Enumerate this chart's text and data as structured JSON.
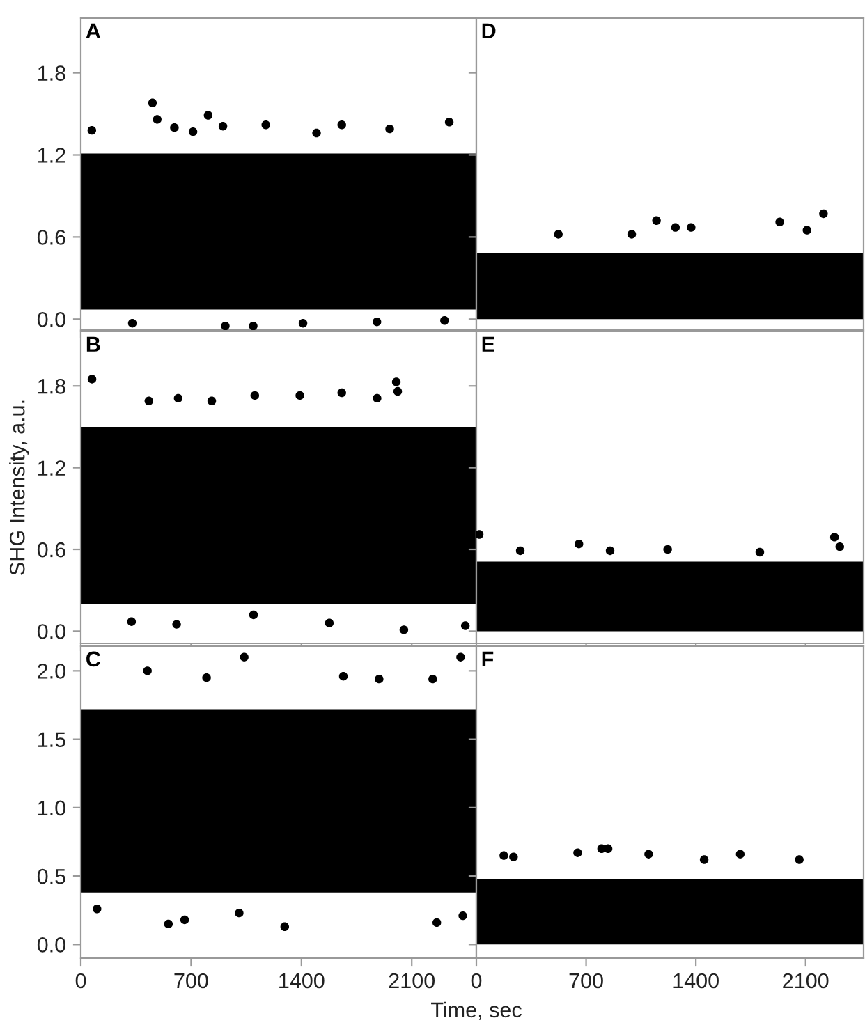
{
  "chart_data": [
    {
      "type": "scatter",
      "title": "A",
      "xlim": [
        0,
        2510
      ],
      "ylim": [
        -0.08,
        2.2
      ],
      "xticks": [
        {
          "value": 0,
          "label": null
        },
        {
          "value": 700,
          "label": null
        },
        {
          "value": 1400,
          "label": null
        },
        {
          "value": 2100,
          "label": null
        }
      ],
      "yticks": [
        {
          "value": 0,
          "label": "0.0"
        },
        0.6,
        1.2,
        1.8
      ],
      "tick_labels": "y",
      "marker": "circle",
      "color": "#000000",
      "bands": [
        {
          "axis": "y",
          "from": 0.07,
          "to": 1.21,
          "color": "#000000"
        }
      ],
      "x": [
        455,
        485,
        808,
        902,
        1174,
        1656,
        1960,
        2338,
        70,
        594,
        712,
        1496,
        917,
        1094,
        1410,
        327,
        1879,
        2308
      ],
      "values": [
        1.58,
        1.46,
        1.49,
        1.41,
        1.42,
        1.42,
        1.39,
        1.44,
        1.38,
        1.4,
        1.37,
        1.36,
        -0.05,
        -0.05,
        -0.03,
        -0.03,
        -0.02,
        -0.01
      ]
    },
    {
      "type": "scatter",
      "title": "D",
      "xlim": [
        0,
        2470
      ],
      "ylim": [
        -0.08,
        2.2
      ],
      "xticks": [
        {
          "value": 0,
          "label": null
        },
        {
          "value": 700,
          "label": null
        },
        {
          "value": 1400,
          "label": null
        },
        {
          "value": 2100,
          "label": null
        }
      ],
      "yticks": [
        {
          "value": 0,
          "label": null
        },
        {
          "value": 0.6,
          "label": null
        },
        {
          "value": 1.2,
          "label": null
        },
        {
          "value": 1.8,
          "label": null
        }
      ],
      "tick_labels": false,
      "marker": "circle",
      "color": "#000000",
      "bands": [
        {
          "axis": "y",
          "from": 0.0,
          "to": 0.48,
          "color": "#000000"
        }
      ],
      "x": [
        1149,
        2214,
        1935,
        1270,
        1370,
        2109,
        523,
        991
      ],
      "values": [
        0.72,
        0.77,
        0.71,
        0.67,
        0.67,
        0.65,
        0.62,
        0.62
      ]
    },
    {
      "type": "scatter",
      "title": "B",
      "ylabel": "SHG Intensity, a.u.",
      "xlim": [
        0,
        2510
      ],
      "ylim": [
        -0.09,
        2.2
      ],
      "xticks": [
        {
          "value": 0,
          "label": null
        },
        {
          "value": 700,
          "label": null
        },
        {
          "value": 1400,
          "label": null
        },
        {
          "value": 2100,
          "label": null
        }
      ],
      "yticks": [
        {
          "value": 0,
          "label": "0.0"
        },
        0.6,
        1.2,
        1.8
      ],
      "tick_labels": "y",
      "marker": "circle",
      "color": "#000000",
      "bands": [
        {
          "axis": "y",
          "from": 0.2,
          "to": 1.5,
          "color": "#000000"
        }
      ],
      "x": [
        71,
        2002,
        2011,
        1104,
        1656,
        1390,
        432,
        618,
        831,
        1880,
        322,
        608,
        2050,
        1577,
        2440,
        1096
      ],
      "values": [
        1.85,
        1.83,
        1.76,
        1.73,
        1.75,
        1.73,
        1.69,
        1.71,
        1.69,
        1.71,
        0.07,
        0.05,
        0.01,
        0.06,
        0.04,
        0.12
      ]
    },
    {
      "type": "scatter",
      "title": "E",
      "xlim": [
        0,
        2470
      ],
      "ylim": [
        -0.09,
        2.2
      ],
      "xticks": [
        {
          "value": 0,
          "label": null
        },
        {
          "value": 700,
          "label": null
        },
        {
          "value": 1400,
          "label": null
        },
        {
          "value": 2100,
          "label": null
        }
      ],
      "yticks": [
        {
          "value": 0,
          "label": null
        },
        {
          "value": 0.6,
          "label": null
        },
        {
          "value": 1.2,
          "label": null
        },
        {
          "value": 1.8,
          "label": null
        }
      ],
      "tick_labels": false,
      "marker": "circle",
      "color": "#000000",
      "bands": [
        {
          "axis": "y",
          "from": 0.0,
          "to": 0.51,
          "color": "#000000"
        }
      ],
      "x": [
        18,
        654,
        2284,
        2318,
        280,
        1220,
        853,
        1808
      ],
      "values": [
        0.71,
        0.64,
        0.69,
        0.62,
        0.59,
        0.6,
        0.59,
        0.58
      ]
    },
    {
      "type": "scatter",
      "title": "C",
      "xlabel": "Time, sec",
      "xlim": [
        0,
        2510
      ],
      "ylim": [
        -0.1,
        2.18
      ],
      "xticks": [
        0,
        700,
        1400,
        2100
      ],
      "yticks": [
        {
          "value": 0,
          "label": "0.0"
        },
        0.5,
        {
          "value": 1,
          "label": "1.0"
        },
        1.5,
        {
          "value": 2,
          "label": "2.0"
        }
      ],
      "marker": "circle",
      "color": "#000000",
      "bands": [
        {
          "axis": "y",
          "from": 0.38,
          "to": 1.72,
          "color": "#000000"
        }
      ],
      "x": [
        1037,
        2410,
        423,
        1666,
        798,
        2233,
        1893,
        556,
        1294,
        2259,
        659,
        1005,
        2424,
        103
      ],
      "values": [
        2.1,
        2.1,
        2.0,
        1.96,
        1.95,
        1.94,
        1.94,
        0.15,
        0.13,
        0.16,
        0.18,
        0.23,
        0.21,
        0.26
      ]
    },
    {
      "type": "scatter",
      "title": "F",
      "xlim": [
        0,
        2470
      ],
      "ylim": [
        -0.1,
        2.18
      ],
      "xticks": [
        0,
        700,
        1400,
        2100
      ],
      "yticks": [
        {
          "value": 0,
          "label": null
        },
        {
          "value": 0.5,
          "label": null
        },
        {
          "value": 1,
          "label": null
        },
        {
          "value": 1.5,
          "label": null
        },
        {
          "value": 2,
          "label": null
        }
      ],
      "tick_labels": "x",
      "marker": "circle",
      "color": "#000000",
      "bands": [
        {
          "axis": "y",
          "from": 0.0,
          "to": 0.48,
          "color": "#000000"
        }
      ],
      "x": [
        799,
        840,
        646,
        1099,
        1683,
        175,
        237,
        2060,
        1453
      ],
      "values": [
        0.7,
        0.7,
        0.67,
        0.66,
        0.66,
        0.65,
        0.64,
        0.62,
        0.62
      ]
    }
  ]
}
